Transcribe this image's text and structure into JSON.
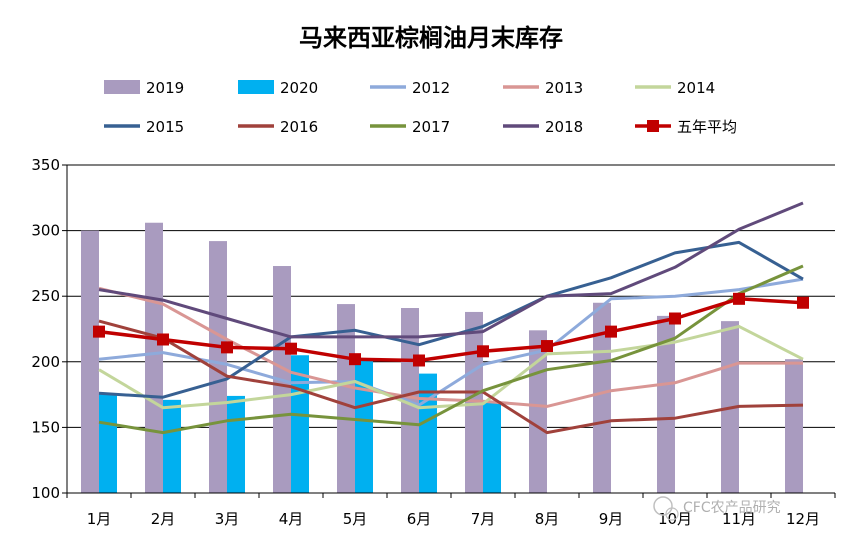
{
  "chart_data": {
    "type": "bar",
    "title": "马来西亚棕榈油月末库存",
    "xlabel": "",
    "ylabel": "",
    "categories": [
      "1月",
      "2月",
      "3月",
      "4月",
      "5月",
      "6月",
      "7月",
      "8月",
      "9月",
      "10月",
      "11月",
      "12月"
    ],
    "ylim": [
      100,
      350
    ],
    "yticks": [
      100,
      150,
      200,
      250,
      300,
      350
    ],
    "grid": true,
    "legend_position": "top",
    "bar_series": [
      {
        "name": "2019",
        "color": "#a99bbf",
        "values": [
          300,
          306,
          292,
          273,
          244,
          241,
          238,
          224,
          245,
          235,
          231,
          202
        ]
      },
      {
        "name": "2020",
        "color": "#00b0f0",
        "values": [
          176,
          171,
          174,
          205,
          201,
          191,
          170,
          null,
          null,
          null,
          null,
          null
        ]
      }
    ],
    "line_series": [
      {
        "name": "2012",
        "color": "#8eaadb",
        "values": [
          202,
          207,
          198,
          184,
          185,
          167,
          198,
          209,
          248,
          250,
          255,
          263
        ]
      },
      {
        "name": "2013",
        "color": "#d99694",
        "values": [
          256,
          244,
          217,
          192,
          180,
          172,
          170,
          166,
          178,
          184,
          199,
          199
        ]
      },
      {
        "name": "2014",
        "color": "#c3d69b",
        "values": [
          194,
          165,
          169,
          175,
          185,
          165,
          168,
          206,
          208,
          215,
          227,
          202
        ]
      },
      {
        "name": "2015",
        "color": "#376092",
        "values": [
          176,
          173,
          187,
          219,
          224,
          213,
          227,
          250,
          264,
          283,
          291,
          263
        ]
      },
      {
        "name": "2016",
        "color": "#a0413b",
        "values": [
          231,
          218,
          189,
          181,
          165,
          177,
          177,
          146,
          155,
          157,
          166,
          167
        ]
      },
      {
        "name": "2017",
        "color": "#77933c",
        "values": [
          154,
          146,
          155,
          160,
          156,
          152,
          178,
          194,
          201,
          218,
          252,
          273
        ]
      },
      {
        "name": "2018",
        "color": "#604a7b",
        "values": [
          255,
          247,
          233,
          219,
          219,
          219,
          223,
          250,
          252,
          272,
          301,
          321
        ]
      },
      {
        "name": "五年平均",
        "color": "#c00000",
        "marker": "square",
        "values": [
          223,
          217,
          211,
          210,
          202,
          201,
          208,
          212,
          223,
          233,
          248,
          245
        ]
      }
    ],
    "watermark": "CFC农产品研究"
  }
}
